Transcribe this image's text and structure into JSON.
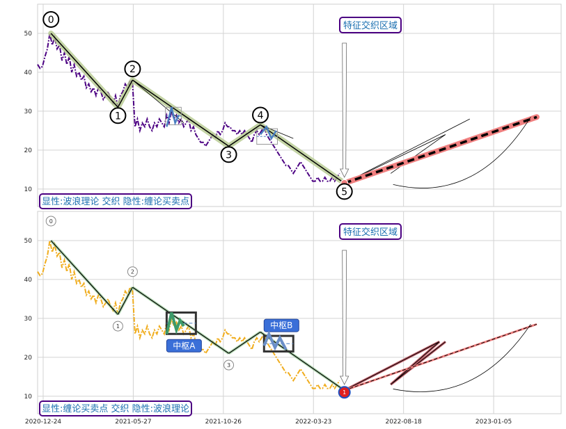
{
  "chart_data": [
    {
      "type": "line",
      "panel": "top",
      "xlabel": "",
      "ylabel": "",
      "ylim": [
        5.5,
        57.5
      ],
      "yticks": [
        "10",
        "20",
        "30",
        "40",
        "50"
      ],
      "grid": true,
      "price_series": [
        [
          0,
          42
        ],
        [
          2,
          41
        ],
        [
          4,
          41.5
        ],
        [
          6,
          44
        ],
        [
          8,
          46
        ],
        [
          10,
          50
        ],
        [
          12,
          47
        ],
        [
          14,
          49
        ],
        [
          16,
          46
        ],
        [
          18,
          47
        ],
        [
          20,
          43
        ],
        [
          22,
          45
        ],
        [
          24,
          42
        ],
        [
          26,
          44
        ],
        [
          28,
          40
        ],
        [
          30,
          42
        ],
        [
          32,
          39
        ],
        [
          34,
          40
        ],
        [
          36,
          38
        ],
        [
          38,
          39
        ],
        [
          40,
          36
        ],
        [
          42,
          37
        ],
        [
          44,
          35
        ],
        [
          46,
          36
        ],
        [
          48,
          34
        ],
        [
          50,
          36
        ],
        [
          52,
          35
        ],
        [
          54,
          33
        ],
        [
          56,
          34
        ],
        [
          58,
          35
        ],
        [
          60,
          33
        ],
        [
          62,
          32
        ],
        [
          64,
          34
        ],
        [
          66,
          31
        ],
        [
          68,
          34
        ],
        [
          70,
          35
        ],
        [
          72,
          37
        ],
        [
          74,
          36
        ],
        [
          76,
          38
        ],
        [
          78,
          37
        ],
        [
          80,
          26
        ],
        [
          82,
          28
        ],
        [
          84,
          25
        ],
        [
          86,
          27
        ],
        [
          88,
          26
        ],
        [
          90,
          28
        ],
        [
          92,
          26
        ],
        [
          94,
          25
        ],
        [
          96,
          27
        ],
        [
          98,
          26
        ],
        [
          100,
          28
        ],
        [
          102,
          27
        ],
        [
          104,
          26
        ],
        [
          106,
          29
        ],
        [
          108,
          27
        ],
        [
          110,
          30
        ],
        [
          112,
          28
        ],
        [
          114,
          29
        ],
        [
          116,
          27
        ],
        [
          118,
          28
        ],
        [
          120,
          26
        ],
        [
          122,
          27
        ],
        [
          124,
          28
        ],
        [
          126,
          25
        ],
        [
          128,
          26
        ],
        [
          130,
          24
        ],
        [
          132,
          23
        ],
        [
          134,
          22
        ],
        [
          136,
          22
        ],
        [
          138,
          21
        ],
        [
          140,
          22
        ],
        [
          142,
          23
        ],
        [
          144,
          24
        ],
        [
          146,
          23
        ],
        [
          148,
          25
        ],
        [
          150,
          24
        ],
        [
          152,
          25
        ],
        [
          154,
          27
        ],
        [
          156,
          26
        ],
        [
          158,
          26
        ],
        [
          160,
          25
        ],
        [
          162,
          25
        ],
        [
          164,
          24
        ],
        [
          166,
          25
        ],
        [
          168,
          24
        ],
        [
          170,
          25
        ],
        [
          172,
          24
        ],
        [
          174,
          23
        ],
        [
          176,
          22
        ],
        [
          178,
          24
        ],
        [
          180,
          25
        ],
        [
          182,
          24
        ],
        [
          184,
          25
        ],
        [
          186,
          26
        ],
        [
          188,
          24
        ],
        [
          190,
          23
        ],
        [
          192,
          22
        ],
        [
          194,
          21
        ],
        [
          196,
          20
        ],
        [
          198,
          19
        ],
        [
          200,
          18
        ],
        [
          202,
          17
        ],
        [
          204,
          16
        ],
        [
          206,
          16
        ],
        [
          208,
          15
        ],
        [
          210,
          14
        ],
        [
          212,
          15
        ],
        [
          214,
          16
        ],
        [
          216,
          17
        ],
        [
          218,
          16
        ],
        [
          220,
          15
        ],
        [
          222,
          14
        ],
        [
          224,
          13
        ],
        [
          226,
          12
        ],
        [
          228,
          12
        ],
        [
          230,
          13
        ],
        [
          232,
          12
        ],
        [
          234,
          12
        ],
        [
          236,
          13
        ],
        [
          238,
          12
        ],
        [
          240,
          12
        ],
        [
          242,
          13
        ],
        [
          244,
          12
        ],
        [
          246,
          13
        ],
        [
          248,
          14
        ]
      ],
      "wave_points": [
        {
          "label": "0",
          "x": 11,
          "y": 50
        },
        {
          "label": "1",
          "x": 66,
          "y": 31
        },
        {
          "label": "2",
          "x": 78,
          "y": 38
        },
        {
          "label": "3",
          "x": 157,
          "y": 21
        },
        {
          "label": "4",
          "x": 183,
          "y": 26.5
        },
        {
          "label": "5",
          "x": 252,
          "y": 11.5
        }
      ],
      "trend_lines": [
        [
          [
            11,
            50
          ],
          [
            66,
            31
          ]
        ],
        [
          [
            66,
            31
          ],
          [
            78,
            38
          ]
        ],
        [
          [
            78,
            38
          ],
          [
            157,
            21
          ]
        ],
        [
          [
            157,
            21
          ],
          [
            183,
            26.5
          ]
        ],
        [
          [
            183,
            26.5
          ],
          [
            252,
            11.5
          ]
        ]
      ],
      "fan_lines": [
        [
          [
            78,
            38
          ],
          [
            120,
            27
          ]
        ],
        [
          [
            183,
            26.5
          ],
          [
            210,
            23
          ]
        ],
        [
          [
            252,
            11.5
          ],
          [
            335,
            24
          ]
        ],
        [
          [
            252,
            11.5
          ],
          [
            355,
            28
          ]
        ],
        [
          [
            290,
            14
          ],
          [
            335,
            24
          ]
        ]
      ],
      "zhongshu_boxes": [
        {
          "x0": 105,
          "x1": 118,
          "y0": 26.5,
          "y1": 31
        },
        {
          "x0": 180,
          "x1": 197,
          "y0": 21.5,
          "y1": 25.5
        }
      ],
      "zs_strokes": [
        [
          [
            106,
            26
          ],
          [
            110,
            31
          ],
          [
            113,
            27
          ],
          [
            116,
            29
          ]
        ],
        [
          [
            183,
            24
          ],
          [
            188,
            26
          ],
          [
            192,
            23
          ],
          [
            196,
            25
          ]
        ]
      ],
      "forecast": {
        "x": [
          252,
          410
        ],
        "y": [
          11.5,
          28.5
        ]
      },
      "buy_point": {
        "x": 252,
        "y": 11.5
      },
      "annotation": {
        "text": "特征交织区域",
        "arrow_to": [
          252,
          13
        ]
      },
      "caption": "显性:波浪理论 交织 隐性:缠论买卖点"
    },
    {
      "type": "line",
      "panel": "bottom",
      "xlabel": "",
      "ylabel": "",
      "ylim": [
        5.5,
        57.5
      ],
      "xticks": [
        "2020-12-24",
        "2021-05-27",
        "2021-10-26",
        "2022-03-23",
        "2022-08-18",
        "2023-01-05"
      ],
      "yticks": [
        "10",
        "20",
        "30",
        "40",
        "50"
      ],
      "grid": true,
      "wave_labels": [
        "0",
        "1",
        "2",
        "3"
      ],
      "zhongshu": [
        {
          "label": "中枢A",
          "x0": 106,
          "x1": 130,
          "y0": 26,
          "y1": 31.5
        },
        {
          "label": "中枢B",
          "x0": 186,
          "x1": 210,
          "y0": 21.5,
          "y1": 25.5
        }
      ],
      "zs_strokes": [
        [
          [
            106,
            26
          ],
          [
            110,
            31.5
          ],
          [
            114,
            27
          ],
          [
            117,
            29.5
          ],
          [
            120,
            28
          ]
        ],
        [
          [
            186,
            23
          ],
          [
            190,
            26
          ],
          [
            195,
            22.5
          ],
          [
            199,
            25
          ],
          [
            204,
            22
          ]
        ]
      ],
      "buy_point": {
        "label": "1",
        "x": 252,
        "y": 11
      },
      "trend_lines": [
        [
          [
            11,
            50
          ],
          [
            66,
            31
          ]
        ],
        [
          [
            66,
            31
          ],
          [
            78,
            38
          ]
        ],
        [
          [
            78,
            38
          ],
          [
            157,
            21
          ]
        ],
        [
          [
            157,
            21
          ],
          [
            183,
            26.5
          ]
        ],
        [
          [
            183,
            26.5
          ],
          [
            252,
            11.5
          ]
        ]
      ],
      "up_zigzag": [
        [
          252,
          11.5
        ],
        [
          330,
          24
        ],
        [
          290,
          13
        ],
        [
          335,
          24
        ]
      ],
      "forecast": {
        "x": [
          252,
          410
        ],
        "y": [
          11.5,
          28.5
        ]
      },
      "annotation": {
        "text": "特征交织区域",
        "arrow_to": [
          252,
          13
        ]
      },
      "caption": "显性:缠论买卖点 交织 隐性:波浪理论"
    }
  ],
  "colors": {
    "price_top": "#4b0082",
    "price_bottom": "#f0ad1e",
    "wave_highlight": "#b5c98e",
    "forecast_highlight": "#f08080",
    "zs_box": "#333333",
    "zs_label_bg": "#3a6fd8",
    "caption_border": "#4b0082",
    "caption_text": "#1a8fbf"
  }
}
